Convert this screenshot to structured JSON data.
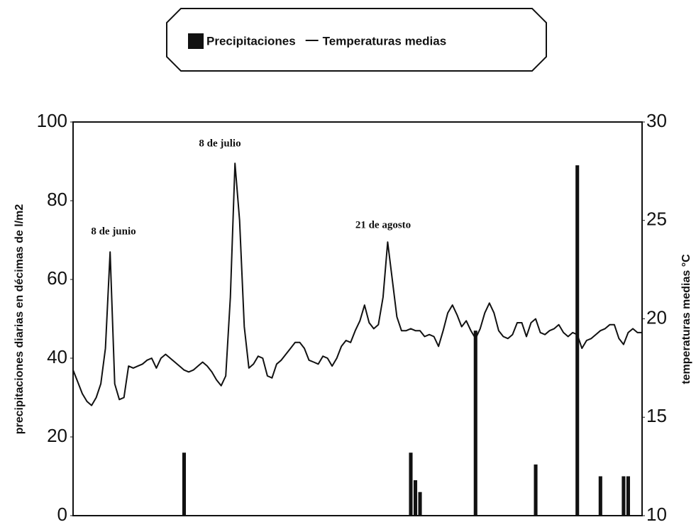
{
  "chart_data": {
    "type": "bar",
    "legend": "top",
    "annotations": [
      "8 de junio",
      "8 de julio",
      "21 de agosto"
    ],
    "ylabel": "precipitaciones diarias en décimas de l/m2",
    "y2label": "temperaturas medias °C",
    "ylim": [
      0,
      100
    ],
    "yticks": [
      0,
      20,
      40,
      60,
      80,
      100
    ],
    "y2lim": [
      10,
      30
    ],
    "y2ticks": [
      10,
      15,
      20,
      25,
      30
    ],
    "categories": [
      null,
      null,
      null,
      null,
      null,
      null,
      null,
      null,
      null,
      null,
      null,
      null,
      null,
      null,
      null,
      null,
      null,
      null,
      null,
      null,
      null,
      null,
      null,
      null,
      null,
      null,
      null,
      null,
      null,
      null,
      null,
      null,
      null,
      null,
      null,
      null,
      null,
      null,
      null,
      null,
      null,
      null,
      null,
      null,
      null,
      null,
      null,
      null,
      null,
      null,
      null,
      null,
      null,
      null,
      null,
      null,
      null,
      null,
      null,
      null,
      null,
      null,
      null,
      null,
      null,
      null,
      null,
      null,
      null,
      null,
      null,
      null,
      null,
      null,
      null,
      null,
      null,
      null,
      null,
      null,
      null,
      null,
      null,
      null,
      null,
      null,
      null,
      null,
      null,
      null,
      null,
      null,
      null,
      null,
      null,
      null,
      null,
      null,
      null,
      null,
      null,
      null,
      null,
      null,
      null,
      null,
      null,
      null,
      null,
      null,
      null,
      null,
      null,
      null,
      null,
      null,
      null,
      null,
      null,
      null,
      null,
      null,
      null,
      null
    ],
    "series": [
      {
        "name": "Precipitaciones",
        "type": "bar",
        "color": "#111111",
        "values": [
          0,
          0,
          0,
          0,
          0,
          0,
          0,
          0,
          0,
          0,
          0,
          0,
          0,
          0,
          0,
          0,
          0,
          0,
          0,
          0,
          0,
          0,
          0,
          0,
          16,
          0,
          0,
          0,
          0,
          0,
          0,
          0,
          0,
          0,
          0,
          0,
          0,
          0,
          0,
          0,
          0,
          0,
          0,
          0,
          0,
          0,
          0,
          0,
          0,
          0,
          0,
          0,
          0,
          0,
          0,
          0,
          0,
          0,
          0,
          0,
          0,
          0,
          0,
          0,
          0,
          0,
          0,
          0,
          0,
          0,
          0,
          0,
          0,
          16,
          9,
          6,
          0,
          0,
          0,
          0,
          0,
          0,
          0,
          0,
          0,
          0,
          0,
          47,
          0,
          0,
          0,
          0,
          0,
          0,
          0,
          0,
          0,
          0,
          0,
          0,
          13,
          0,
          0,
          0,
          0,
          0,
          0,
          0,
          0,
          89,
          0,
          0,
          0,
          0,
          10,
          0,
          0,
          0,
          0,
          10,
          10,
          0,
          0,
          0
        ]
      },
      {
        "name": "Temperaturas medias",
        "type": "line",
        "axis": "y2",
        "color": "#111111",
        "values": [
          17.4,
          16.8,
          16.2,
          15.8,
          15.6,
          16.0,
          16.7,
          18.5,
          23.4,
          16.7,
          15.9,
          16.0,
          17.6,
          17.5,
          17.6,
          17.7,
          17.9,
          18.0,
          17.5,
          18.0,
          18.2,
          18.0,
          17.8,
          17.6,
          17.4,
          17.3,
          17.4,
          17.6,
          17.8,
          17.6,
          17.3,
          16.9,
          16.6,
          17.1,
          21.1,
          27.9,
          25.0,
          19.6,
          17.5,
          17.7,
          18.1,
          18.0,
          17.1,
          17.0,
          17.7,
          17.9,
          18.2,
          18.5,
          18.8,
          18.8,
          18.5,
          17.9,
          17.8,
          17.7,
          18.1,
          18.0,
          17.6,
          18.0,
          18.6,
          18.9,
          18.8,
          19.4,
          19.9,
          20.7,
          19.8,
          19.5,
          19.7,
          21.1,
          23.9,
          22.0,
          20.1,
          19.4,
          19.4,
          19.5,
          19.4,
          19.4,
          19.1,
          19.2,
          19.1,
          18.6,
          19.4,
          20.3,
          20.7,
          20.2,
          19.6,
          19.9,
          19.4,
          19.0,
          19.5,
          20.3,
          20.8,
          20.3,
          19.4,
          19.1,
          19.0,
          19.2,
          19.8,
          19.8,
          19.1,
          19.8,
          20.0,
          19.3,
          19.2,
          19.4,
          19.5,
          19.7,
          19.3,
          19.1,
          19.3,
          19.2,
          18.5,
          18.9,
          19.0,
          19.2,
          19.4,
          19.5,
          19.7,
          19.7,
          19.0,
          18.7,
          19.3,
          19.5,
          19.3,
          19.3
        ]
      }
    ]
  }
}
